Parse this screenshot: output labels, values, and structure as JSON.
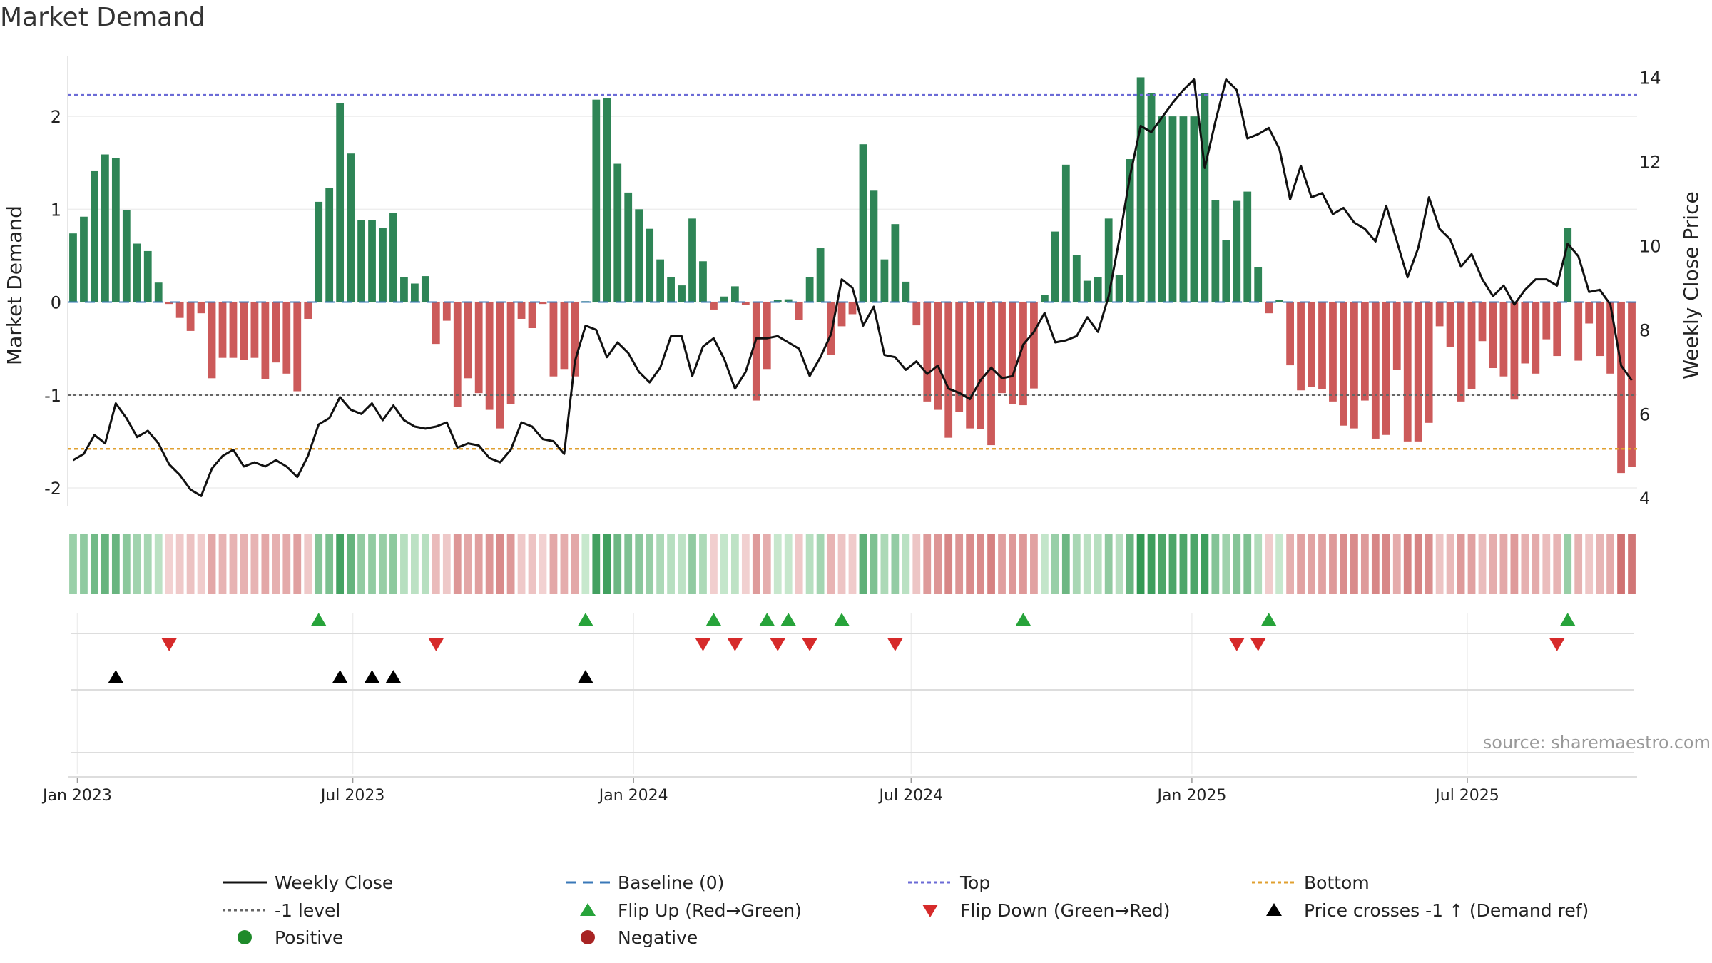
{
  "chart_data": {
    "type": "bar",
    "title": "Market Demand",
    "ylabel": "Market Demand",
    "y2label": "Weekly Close Price",
    "ylim": [
      -2.2,
      2.6
    ],
    "y2lim": [
      3.8,
      14.4
    ],
    "yticks": [
      -2,
      -1,
      0,
      1,
      2
    ],
    "y2ticks": [
      4,
      6,
      8,
      10,
      12,
      14
    ],
    "x_start": "2022-12-26",
    "week_step_days": 7,
    "x_ticks": [
      {
        "label": "Jan 2023",
        "week": 0.9
      },
      {
        "label": "Jul 2023",
        "week": 26.7
      },
      {
        "label": "Jan 2024",
        "week": 53
      },
      {
        "label": "Jul 2024",
        "week": 79
      },
      {
        "label": "Jan 2025",
        "week": 105.3
      },
      {
        "label": "Jul 2025",
        "week": 131.1
      }
    ],
    "reference_lines": {
      "top": 2.23,
      "minus_one": -1,
      "bottom": -1.58,
      "baseline": 0
    },
    "demand": [
      0.74,
      0.92,
      1.41,
      1.59,
      1.55,
      0.99,
      0.63,
      0.55,
      0.21,
      -0.02,
      -0.17,
      -0.31,
      -0.12,
      -0.82,
      -0.6,
      -0.6,
      -0.62,
      -0.6,
      -0.83,
      -0.65,
      -0.77,
      -0.96,
      -0.18,
      1.08,
      1.23,
      2.14,
      1.6,
      0.88,
      0.88,
      0.8,
      0.96,
      0.27,
      0.2,
      0.28,
      -0.45,
      -0.2,
      -1.13,
      -0.82,
      -0.98,
      -1.16,
      -1.36,
      -1.1,
      -0.18,
      -0.28,
      -0.02,
      -0.8,
      -0.72,
      -0.8,
      0.01,
      2.18,
      2.2,
      1.49,
      1.18,
      1.0,
      0.79,
      0.46,
      0.27,
      0.18,
      0.9,
      0.44,
      -0.08,
      0.06,
      0.17,
      -0.03,
      -1.06,
      -0.72,
      0.02,
      0.03,
      -0.19,
      0.27,
      0.58,
      -0.57,
      -0.26,
      -0.13,
      1.7,
      1.2,
      0.46,
      0.84,
      0.22,
      -0.25,
      -1.07,
      -1.16,
      -1.46,
      -1.18,
      -1.36,
      -1.37,
      -1.54,
      -0.98,
      -1.1,
      -1.11,
      -0.93,
      0.08,
      0.76,
      1.48,
      0.51,
      0.23,
      0.27,
      0.9,
      0.29,
      1.54,
      2.42,
      2.25,
      2.0,
      2.0,
      2.0,
      2.0,
      2.25,
      1.1,
      0.67,
      1.09,
      1.19,
      0.38,
      -0.12,
      0.02,
      -0.68,
      -0.95,
      -0.91,
      -0.94,
      -1.07,
      -1.33,
      -1.36,
      -1.06,
      -1.47,
      -1.43,
      -0.73,
      -1.5,
      -1.5,
      -1.3,
      -0.26,
      -0.48,
      -1.07,
      -0.94,
      -0.42,
      -0.71,
      -0.8,
      -1.05,
      -0.66,
      -0.77,
      -0.4,
      -0.58,
      0.8,
      -0.63,
      -0.23,
      -0.58,
      -0.77,
      -1.84,
      -1.77
    ],
    "weekly_close": [
      4.9,
      5.05,
      5.5,
      5.3,
      6.25,
      5.9,
      5.45,
      5.6,
      5.3,
      4.8,
      4.55,
      4.2,
      4.05,
      4.7,
      5.0,
      5.15,
      4.75,
      4.85,
      4.75,
      4.9,
      4.75,
      4.5,
      5.0,
      5.75,
      5.9,
      6.4,
      6.1,
      6.0,
      6.25,
      5.85,
      6.2,
      5.85,
      5.7,
      5.65,
      5.7,
      5.8,
      5.2,
      5.3,
      5.25,
      4.95,
      4.85,
      5.15,
      5.8,
      5.7,
      5.4,
      5.35,
      5.05,
      7.25,
      8.1,
      8.0,
      7.35,
      7.7,
      7.45,
      7.0,
      6.75,
      7.1,
      7.85,
      7.85,
      6.9,
      7.6,
      7.8,
      7.3,
      6.6,
      7.0,
      7.8,
      7.8,
      7.85,
      7.7,
      7.55,
      6.9,
      7.35,
      7.9,
      9.2,
      9.0,
      8.1,
      8.55,
      7.4,
      7.35,
      7.05,
      7.25,
      6.95,
      7.15,
      6.6,
      6.5,
      6.35,
      6.8,
      7.1,
      6.85,
      6.9,
      7.65,
      7.95,
      8.4,
      7.7,
      7.75,
      7.85,
      8.3,
      7.95,
      8.8,
      10.15,
      11.65,
      12.85,
      12.7,
      13.05,
      13.4,
      13.7,
      13.95,
      11.85,
      12.95,
      13.95,
      13.7,
      12.55,
      12.65,
      12.8,
      12.3,
      11.1,
      11.9,
      11.15,
      11.25,
      10.75,
      10.9,
      10.55,
      10.4,
      10.1,
      10.95,
      10.1,
      9.25,
      9.95,
      11.15,
      10.4,
      10.15,
      9.5,
      9.8,
      9.2,
      8.8,
      9.05,
      8.6,
      8.95,
      9.2,
      9.2,
      9.05,
      10.05,
      9.75,
      8.9,
      8.95,
      8.6,
      7.15,
      6.8
    ],
    "flip_up_weeks": [
      23,
      48,
      60,
      65,
      67,
      72,
      89,
      112,
      140
    ],
    "flip_down_weeks": [
      9,
      34,
      59,
      62,
      66,
      69,
      77,
      109,
      111,
      139
    ],
    "price_cross_weeks": [
      4,
      25,
      28,
      30,
      48
    ],
    "series": [
      {
        "name": "Weekly Close"
      },
      {
        "name": "Baseline (0)"
      },
      {
        "name": "Top"
      },
      {
        "name": "Bottom"
      },
      {
        "name": "-1 level"
      },
      {
        "name": "Flip Up (Red→Green)"
      },
      {
        "name": "Flip Down (Green→Red)"
      },
      {
        "name": "Price crosses -1 ↑ (Demand ref)"
      },
      {
        "name": "Positive"
      },
      {
        "name": "Negative"
      }
    ],
    "legend_position": "bottom",
    "colors": {
      "positive_bar": "#2e8556",
      "negative_bar": "#cc5a5a",
      "price_line": "#111111",
      "top_line": "#6b6bd6",
      "bottom_line": "#e0a030",
      "minus_one_line": "#666666",
      "baseline": "#3a78b8",
      "flip_up": "#27a33a",
      "flip_down": "#d62a2a",
      "price_cross": "#000000",
      "positive_dot": "#1e8a2a",
      "negative_dot": "#a82424"
    },
    "annotation": "source: sharemaestro.com"
  }
}
